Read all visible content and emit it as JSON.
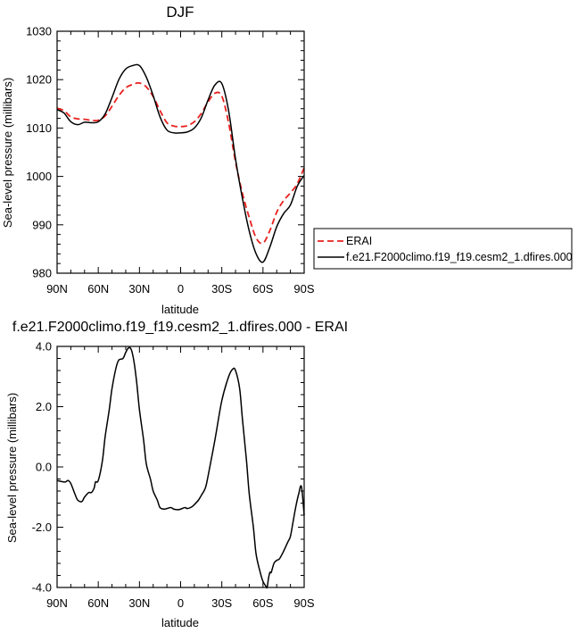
{
  "chart_data": [
    {
      "type": "line",
      "title": "DJF",
      "xlabel": "latitude",
      "ylabel": "Sea-level pressure (millibars)",
      "x_ticks": [
        "90N",
        "60N",
        "30N",
        "0",
        "30S",
        "60S",
        "90S"
      ],
      "x_tick_values": [
        90,
        60,
        30,
        0,
        -30,
        -60,
        -90
      ],
      "xlim": [
        90,
        -90
      ],
      "y_ticks": [
        "980",
        "990",
        "1000",
        "1010",
        "1020",
        "1030"
      ],
      "y_tick_values": [
        980,
        990,
        1000,
        1010,
        1020,
        1030
      ],
      "ylim": [
        980,
        1030
      ],
      "legend_position": "right",
      "series": [
        {
          "name": "ERAI",
          "color": "#e8201e",
          "dash": "dashed",
          "x": [
            90,
            85,
            80,
            75,
            70,
            65,
            60,
            55,
            50,
            45,
            40,
            35,
            30,
            25,
            20,
            15,
            10,
            5,
            0,
            -5,
            -10,
            -15,
            -20,
            -25,
            -30,
            -35,
            -40,
            -45,
            -50,
            -55,
            -60,
            -65,
            -70,
            -75,
            -80,
            -85,
            -90
          ],
          "y": [
            1014.1,
            1013.6,
            1012.3,
            1011.9,
            1011.8,
            1011.6,
            1011.6,
            1012.5,
            1014.5,
            1016.7,
            1018.3,
            1019.0,
            1019.3,
            1018.5,
            1016.5,
            1013.6,
            1011.1,
            1010.4,
            1010.3,
            1010.5,
            1011.3,
            1013.0,
            1015.4,
            1017.2,
            1016.6,
            1011.0,
            1003.0,
            996.5,
            991.5,
            987.3,
            986.2,
            988.8,
            992.6,
            995.0,
            996.6,
            998.5,
            1001.8
          ]
        },
        {
          "name": "f.e21.F2000climo.f19_f19.cesm2_1.dfires.000",
          "color": "#000000",
          "dash": "solid",
          "x": [
            90,
            85,
            80,
            75,
            70,
            65,
            60,
            55,
            50,
            45,
            40,
            35,
            30,
            25,
            20,
            15,
            10,
            5,
            0,
            -5,
            -10,
            -15,
            -20,
            -25,
            -30,
            -35,
            -40,
            -45,
            -50,
            -55,
            -60,
            -65,
            -70,
            -75,
            -80,
            -85,
            -90
          ],
          "y": [
            1013.8,
            1013.1,
            1011.3,
            1010.7,
            1011.2,
            1011.1,
            1011.3,
            1012.9,
            1016.3,
            1020.0,
            1022.2,
            1022.9,
            1022.9,
            1020.5,
            1016.7,
            1012.3,
            1009.6,
            1009.0,
            1009.0,
            1009.2,
            1010.0,
            1012.1,
            1015.8,
            1018.9,
            1019.2,
            1013.5,
            1003.6,
            995.5,
            988.7,
            984.0,
            982.3,
            985.4,
            989.6,
            992.3,
            994.1,
            998.0,
            1000.2
          ]
        }
      ]
    },
    {
      "type": "line",
      "title": "f.e21.F2000climo.f19_f19.cesm2_1.dfires.000 - ERAI",
      "xlabel": "latitude",
      "ylabel": "Sea-level pressure (millibars)",
      "x_ticks": [
        "90N",
        "60N",
        "30N",
        "0",
        "30S",
        "60S",
        "90S"
      ],
      "x_tick_values": [
        90,
        60,
        30,
        0,
        -30,
        -60,
        -90
      ],
      "xlim": [
        90,
        -90
      ],
      "y_ticks": [
        "-4.0",
        "-2.0",
        "0.0",
        "2.0",
        "4.0"
      ],
      "y_tick_values": [
        -4,
        -2,
        0,
        2,
        4
      ],
      "ylim": [
        -4,
        4
      ],
      "series": [
        {
          "color": "#000000",
          "dash": "solid",
          "x": [
            90,
            87,
            84,
            82,
            80,
            77,
            75,
            72,
            70,
            67,
            65,
            63,
            62,
            60,
            57,
            55,
            52,
            50,
            47,
            45,
            42,
            40,
            38,
            36,
            34,
            32,
            30,
            27,
            25,
            22,
            20,
            17,
            15,
            12,
            10,
            7,
            5,
            2,
            0,
            -3,
            -5,
            -8,
            -10,
            -13,
            -15,
            -18,
            -20,
            -25,
            -30,
            -35,
            -38,
            -40,
            -43,
            -45,
            -48,
            -50,
            -53,
            -55,
            -58,
            -60,
            -62,
            -63,
            -64,
            -65,
            -66,
            -68,
            -70,
            -72,
            -75,
            -78,
            -80,
            -82,
            -84,
            -86,
            -88,
            -90
          ],
          "y": [
            -0.45,
            -0.48,
            -0.5,
            -0.45,
            -0.55,
            -0.9,
            -1.1,
            -1.15,
            -1.0,
            -0.85,
            -0.85,
            -0.7,
            -0.5,
            -0.45,
            0.2,
            1.0,
            1.9,
            2.6,
            3.3,
            3.55,
            3.6,
            3.8,
            3.95,
            3.9,
            3.5,
            2.8,
            1.9,
            0.9,
            0.1,
            -0.4,
            -0.8,
            -1.1,
            -1.35,
            -1.4,
            -1.38,
            -1.35,
            -1.4,
            -1.42,
            -1.4,
            -1.35,
            -1.38,
            -1.33,
            -1.25,
            -1.1,
            -0.95,
            -0.7,
            -0.3,
            0.9,
            2.2,
            3.0,
            3.25,
            3.2,
            2.6,
            1.6,
            0.2,
            -0.9,
            -2.0,
            -2.9,
            -3.5,
            -3.8,
            -3.95,
            -4.0,
            -3.7,
            -3.5,
            -3.5,
            -3.2,
            -3.1,
            -3.05,
            -2.8,
            -2.5,
            -2.3,
            -1.8,
            -1.3,
            -0.9,
            -0.65,
            -1.6
          ]
        }
      ]
    }
  ]
}
